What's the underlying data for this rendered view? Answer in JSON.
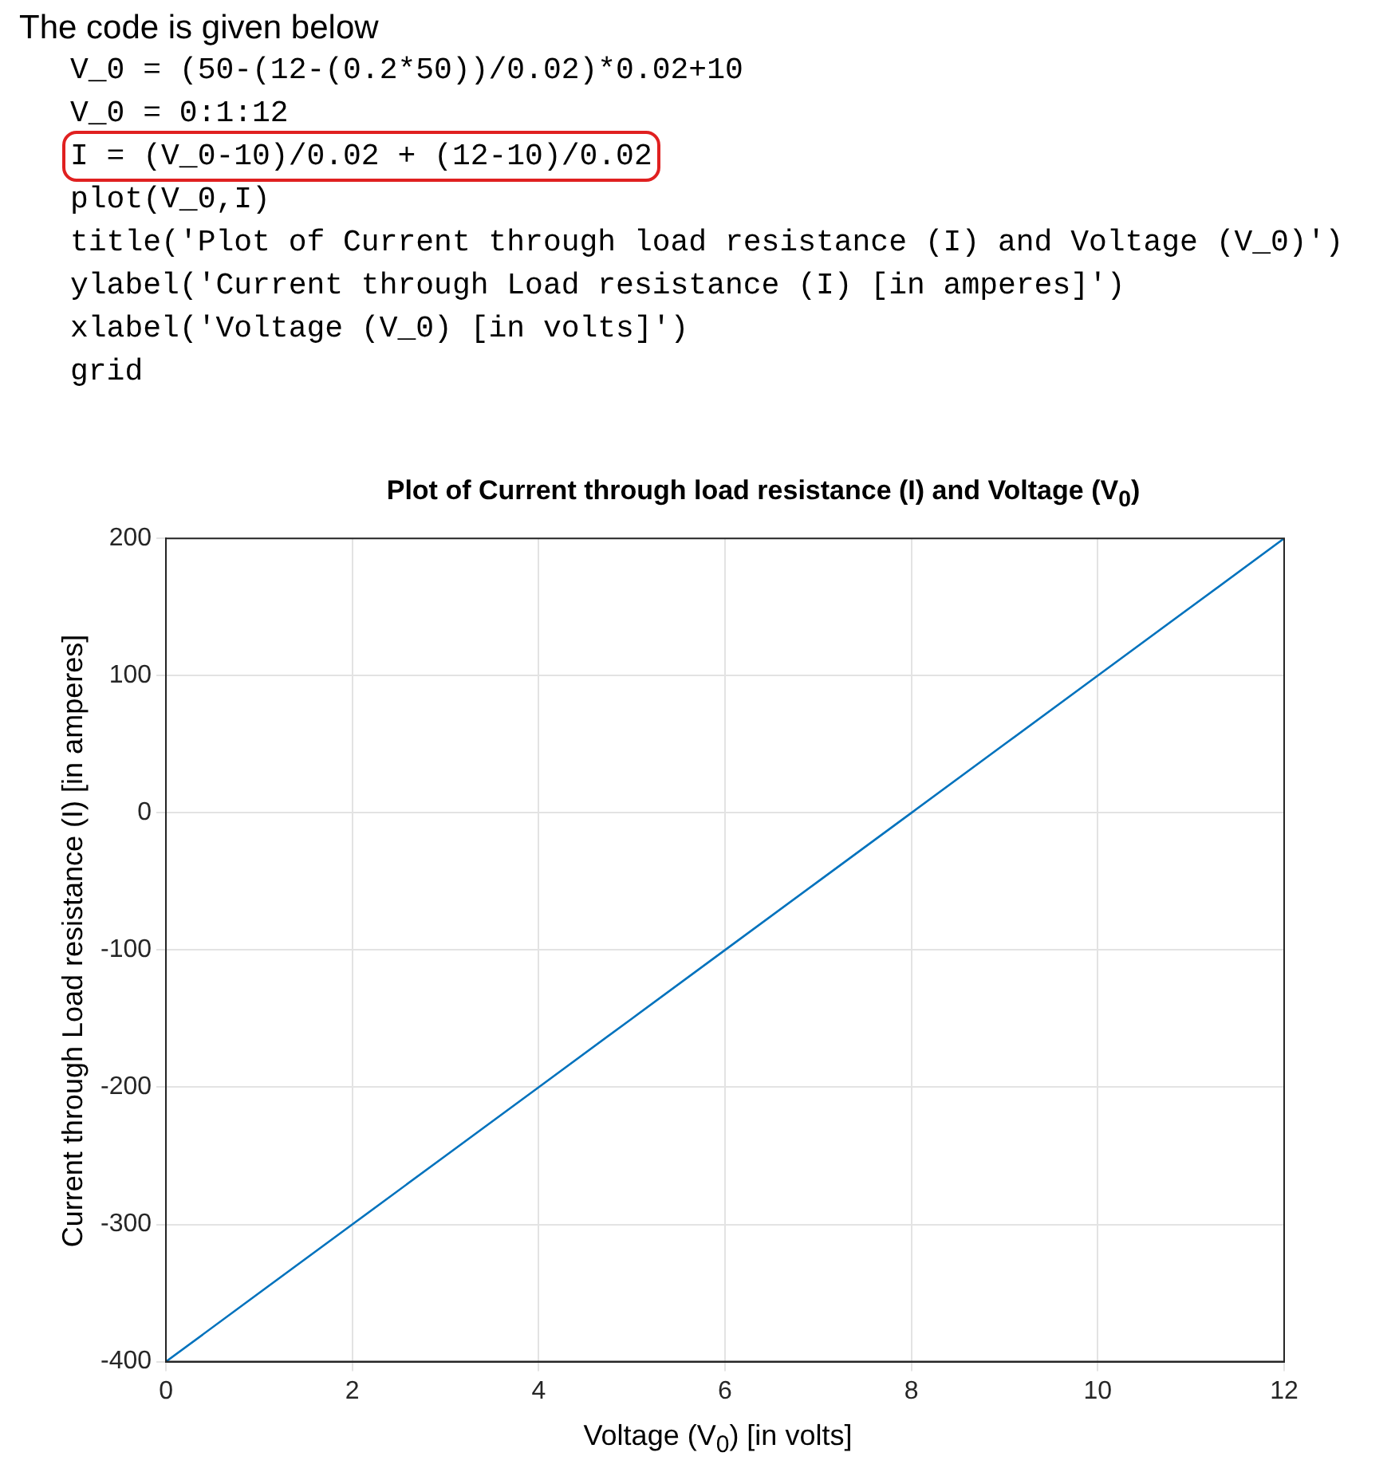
{
  "chart_data": {
    "type": "line",
    "title": "Plot of Current through load resistance (I) and Voltage (V$_{0}$)",
    "xlabel": "Voltage (V$_{0}$) [in volts]",
    "ylabel": "Current through Load resistance (I) [in amperes]",
    "annotations": [
      "The code is given below",
      "V_0 = (50-(12-(0.2*50))/0.02)*0.02+10",
      "V_0 = 0:1:12",
      "I = (V_0-10)/0.02 + (12-10)/0.02",
      "plot(V_0,I)",
      "title('Plot of Current through load resistance (I) and Voltage (V_0)')",
      "ylabel('Current through Load resistance (I) [in amperes]')",
      "xlabel('Voltage (V_0) [in volts]')",
      "grid"
    ],
    "x": [
      0,
      1,
      2,
      3,
      4,
      5,
      6,
      7,
      8,
      9,
      10,
      11,
      12
    ],
    "series": [
      {
        "color": "#0072bd",
        "values": [
          -400,
          -350,
          -300,
          -250,
          -200,
          -150,
          -100,
          -50,
          0,
          50,
          100,
          150,
          200
        ]
      }
    ],
    "xlim": [
      0,
      12
    ],
    "xticks": [
      0,
      2,
      4,
      6,
      8,
      10,
      12
    ],
    "ylim": [
      -400,
      200
    ],
    "yticks": [
      -400,
      -300,
      -200,
      -100,
      0,
      100,
      200
    ],
    "grid": true,
    "legend": false,
    "marker": "none",
    "line_style": "solid"
  }
}
